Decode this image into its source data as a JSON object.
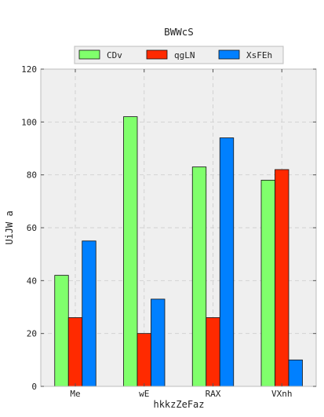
{
  "chart_data": {
    "type": "bar",
    "title": "BWWcS",
    "xlabel": "hkkzZeFaz",
    "ylabel": "UiJW a",
    "categories": [
      "Me",
      "wE",
      "RAX",
      "VXnh"
    ],
    "series": [
      {
        "name": "CDv",
        "color": "#80ff6c",
        "values": [
          42,
          102,
          83,
          78
        ]
      },
      {
        "name": "qgLN",
        "color": "#ff2a00",
        "values": [
          26,
          20,
          26,
          82
        ]
      },
      {
        "name": "XsFEh",
        "color": "#0080ff",
        "values": [
          55,
          33,
          94,
          10
        ]
      }
    ],
    "ylim": [
      0,
      120
    ],
    "yticks": [
      0,
      20,
      40,
      60,
      80,
      100,
      120
    ],
    "grid": true,
    "legend_position": "top-center"
  }
}
